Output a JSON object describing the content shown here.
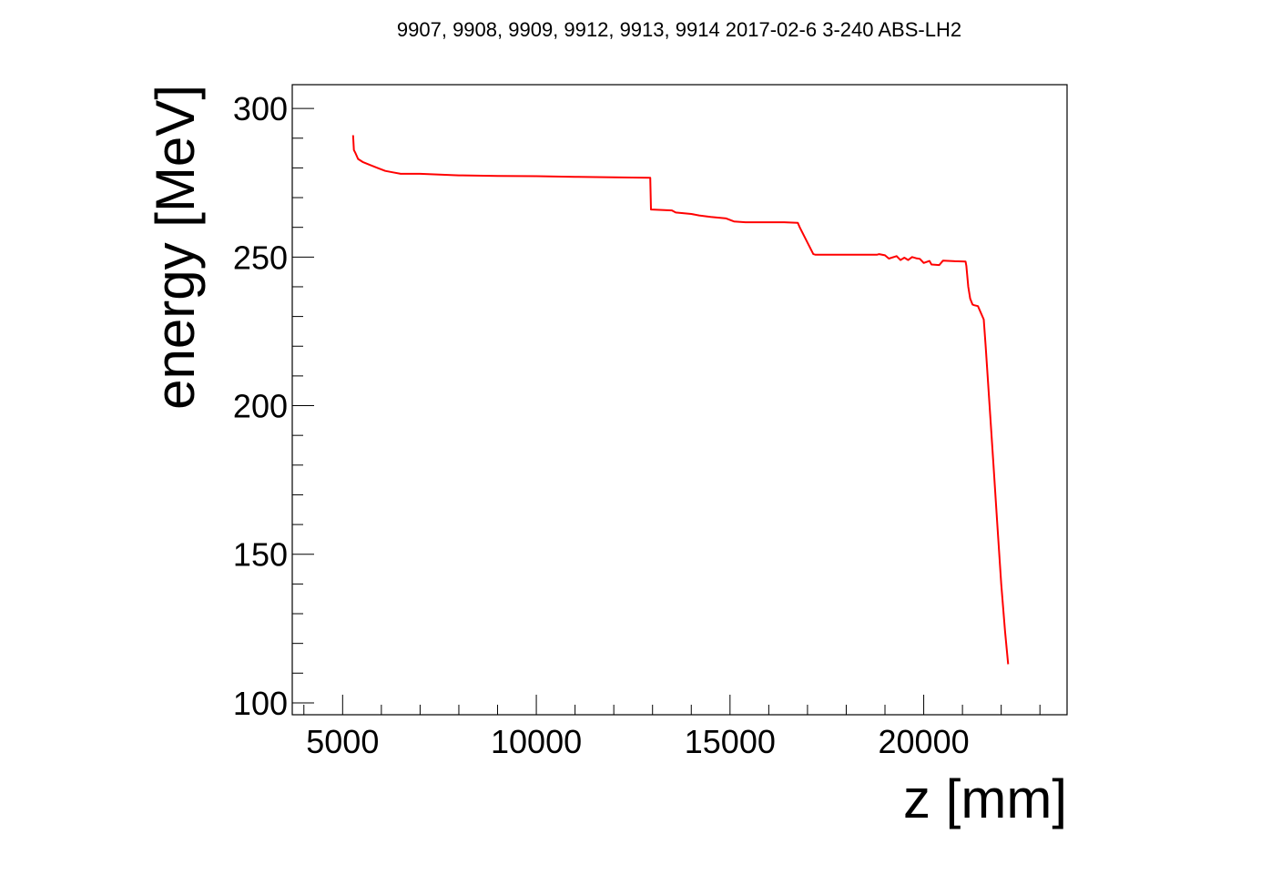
{
  "chart_data": {
    "type": "line",
    "title": "9907, 9908, 9909, 9912, 9913, 9914 2017-02-6 3-240 ABS-LH2",
    "xlabel": "z [mm]",
    "ylabel": "energy [MeV]",
    "xlim": [
      3700,
      23700
    ],
    "ylim": [
      96,
      308
    ],
    "x_ticks": [
      5000,
      10000,
      15000,
      20000
    ],
    "y_ticks": [
      100,
      150,
      200,
      250,
      300
    ],
    "x_minor_step": 1000,
    "y_minor_step": 10,
    "grid": false,
    "frame": true,
    "series": [
      {
        "color": "#ff0000",
        "x": [
          5270,
          5290,
          5330,
          5400,
          5520,
          5700,
          5900,
          6100,
          6300,
          6500,
          7000,
          8000,
          9000,
          10000,
          11000,
          12000,
          12940,
          12960,
          12980,
          13500,
          13600,
          14000,
          14200,
          14500,
          14900,
          15100,
          15400,
          15800,
          16400,
          16750,
          16800,
          17150,
          17200,
          18000,
          18800,
          18850,
          19000,
          19100,
          19300,
          19400,
          19500,
          19600,
          19700,
          19800,
          19900,
          20000,
          20150,
          20200,
          20400,
          20500,
          20800,
          21080,
          21100,
          21150,
          21200,
          21260,
          21300,
          21400,
          21550,
          21600,
          21700,
          21800,
          21900,
          22000,
          22100,
          22180
        ],
        "y": [
          291,
          286,
          285,
          283,
          282,
          281,
          280,
          279,
          278.5,
          278,
          278,
          277.5,
          277.3,
          277.2,
          277,
          276.8,
          276.7,
          266,
          266,
          265.7,
          265,
          264.5,
          264,
          263.5,
          263,
          262,
          261.7,
          261.7,
          261.7,
          261.5,
          260,
          251,
          250.8,
          250.8,
          250.8,
          251,
          250.6,
          249.5,
          250.3,
          249,
          249.8,
          249,
          250,
          249.6,
          249.4,
          248,
          248.7,
          247.5,
          247.3,
          248.8,
          248.6,
          248.5,
          247,
          240,
          236,
          234,
          233.8,
          233.5,
          229,
          220,
          200,
          180,
          160,
          140,
          124,
          113
        ]
      }
    ]
  }
}
